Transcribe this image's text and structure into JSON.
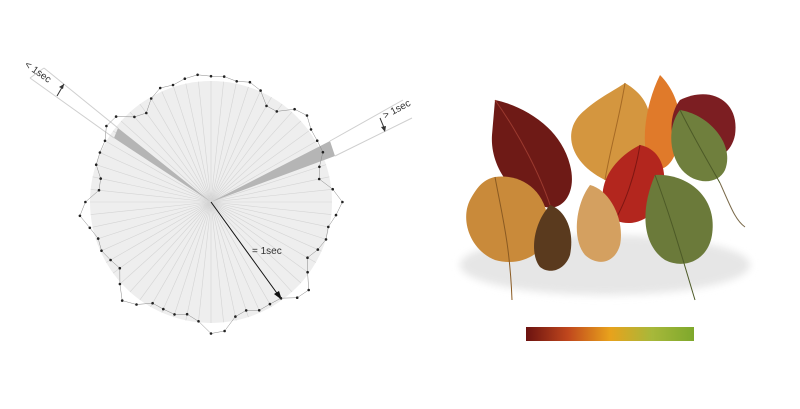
{
  "diagram": {
    "labels": {
      "less": "< 1sec",
      "greater": "> 1sec",
      "equal": "= 1sec"
    },
    "colors": {
      "disk": "#eeeeee",
      "spokes": "#d4d4d4",
      "wedge": "#b5b5b5",
      "dots": "#222222",
      "arrow": "#111111"
    }
  },
  "leaves_image": {
    "colors": [
      "#6e1a16",
      "#c98a3a",
      "#e9a35a",
      "#b3261e",
      "#7c8a3e",
      "#9a5a2a",
      "#d4a060"
    ]
  },
  "gradient": {
    "colors": [
      "#6b1210",
      "#c0471d",
      "#e8a21c",
      "#a7b83a",
      "#7ea82c"
    ]
  }
}
